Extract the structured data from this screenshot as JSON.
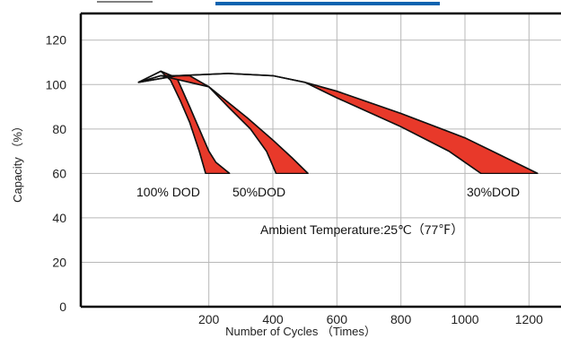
{
  "chart_data": {
    "type": "area",
    "title": "",
    "xlabel": "Number of Cycles （Times）",
    "ylabel": "Capacity （%）",
    "xlim": [
      -200,
      1300
    ],
    "ylim": [
      0,
      132
    ],
    "x_ticks": [
      200,
      400,
      600,
      800,
      1000,
      1200
    ],
    "y_ticks": [
      0,
      20,
      40,
      60,
      80,
      100,
      120
    ],
    "grid": true,
    "fill_color": "#e8392a",
    "annotation": "Ambient Temperature:25℃（77℉）",
    "series": [
      {
        "name": "100% DOD",
        "upper": [
          [
            -20,
            101
          ],
          [
            50,
            106
          ],
          [
            100,
            103
          ],
          [
            140,
            90
          ],
          [
            170,
            80
          ],
          [
            200,
            70
          ],
          [
            222,
            65
          ],
          [
            265,
            60
          ]
        ],
        "lower": [
          [
            -20,
            101
          ],
          [
            50,
            106
          ],
          [
            80,
            102
          ],
          [
            110,
            93
          ],
          [
            140,
            83
          ],
          [
            170,
            70
          ],
          [
            190,
            60
          ]
        ],
        "cutoff": 60
      },
      {
        "name": "50%DOD",
        "upper": [
          [
            -20,
            101
          ],
          [
            50,
            104
          ],
          [
            200,
            99
          ],
          [
            320,
            85
          ],
          [
            400,
            75
          ],
          [
            460,
            67
          ],
          [
            510,
            60
          ]
        ],
        "lower": [
          [
            -20,
            101
          ],
          [
            50,
            104
          ],
          [
            140,
            104
          ],
          [
            200,
            99
          ],
          [
            260,
            90
          ],
          [
            330,
            80
          ],
          [
            380,
            70
          ],
          [
            410,
            60
          ]
        ],
        "cutoff": 60
      },
      {
        "name": "30%DOD",
        "upper": [
          [
            -20,
            101
          ],
          [
            100,
            104
          ],
          [
            260,
            105
          ],
          [
            400,
            104
          ],
          [
            500,
            101
          ],
          [
            600,
            97
          ],
          [
            800,
            87
          ],
          [
            1000,
            76
          ],
          [
            1100,
            69
          ],
          [
            1227,
            60
          ]
        ],
        "lower": [
          [
            -20,
            101
          ],
          [
            100,
            104
          ],
          [
            260,
            105
          ],
          [
            400,
            104
          ],
          [
            500,
            101
          ],
          [
            600,
            94
          ],
          [
            800,
            81
          ],
          [
            950,
            70
          ],
          [
            1050,
            60
          ]
        ],
        "cutoff": 60
      }
    ]
  }
}
